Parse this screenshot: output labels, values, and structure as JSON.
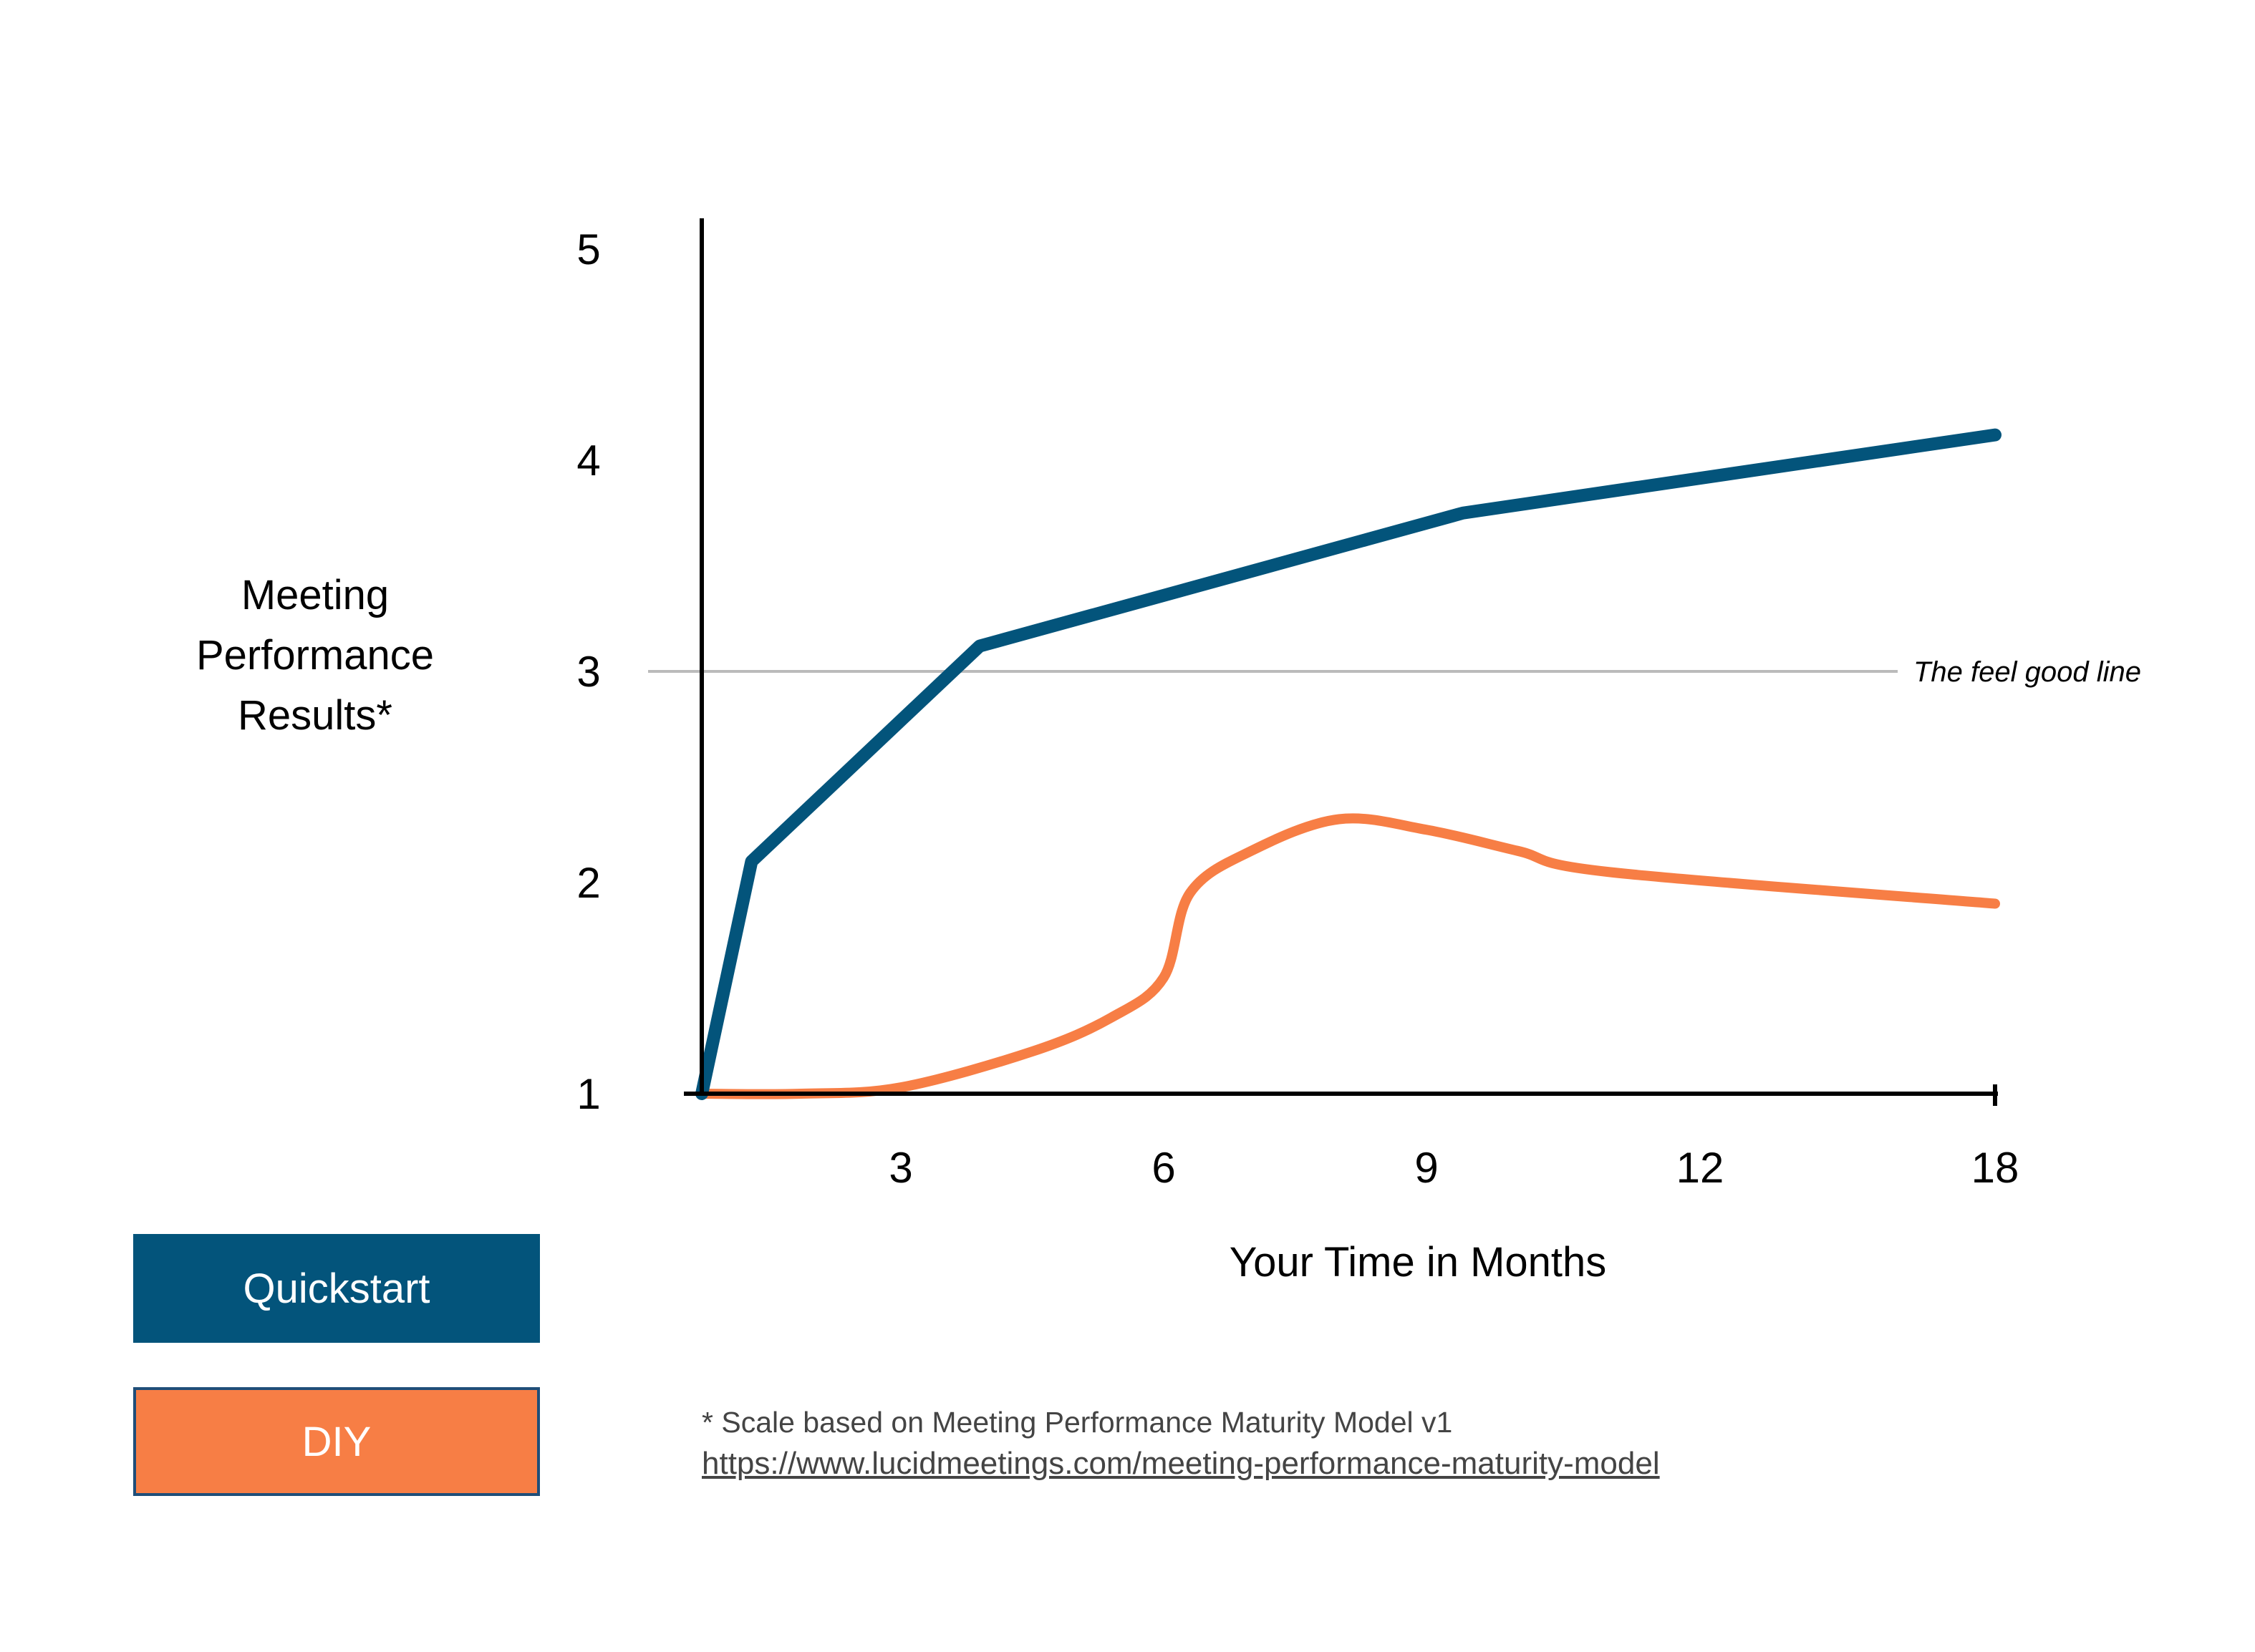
{
  "chart_data": {
    "type": "line",
    "ylabel": [
      "Meeting",
      "Performance",
      "Results*"
    ],
    "xlabel": "Your Time in Months",
    "y_ticks": [
      "1",
      "2",
      "3",
      "4",
      "5"
    ],
    "ylim": [
      1,
      5
    ],
    "x_ticks": [
      "3",
      "6",
      "9",
      "12",
      "18"
    ],
    "reference_line": {
      "value": 3,
      "label": "The feel good line",
      "color": "#bbbbbb"
    },
    "grid": false,
    "series": [
      {
        "name": "Quickstart",
        "color": "#03547b",
        "style": "straight",
        "points": [
          [
            1,
            1
          ],
          [
            1.5,
            2.1
          ],
          [
            3.9,
            3.12
          ],
          [
            9.4,
            3.75
          ],
          [
            18,
            4.12
          ]
        ]
      },
      {
        "name": "DIY",
        "color": "#f77e45",
        "style": "smooth",
        "points": [
          [
            1,
            1
          ],
          [
            2,
            1
          ],
          [
            3,
            1.03
          ],
          [
            4.5,
            1.2
          ],
          [
            5.4,
            1.36
          ],
          [
            6,
            1.55
          ],
          [
            6.3,
            1.95
          ],
          [
            7,
            2.15
          ],
          [
            8,
            2.3
          ],
          [
            9,
            2.25
          ],
          [
            10,
            2.15
          ],
          [
            11,
            2.05
          ],
          [
            18,
            1.9
          ]
        ]
      }
    ]
  },
  "legend": [
    {
      "label": "Quickstart",
      "color": "#03547b"
    },
    {
      "label": "DIY",
      "color": "#f77e45"
    }
  ],
  "footnote": {
    "note": "* Scale based on Meeting Performance Maturity Model v1",
    "link": "https://www.lucidmeetings.com/meeting-performance-maturity-model"
  }
}
